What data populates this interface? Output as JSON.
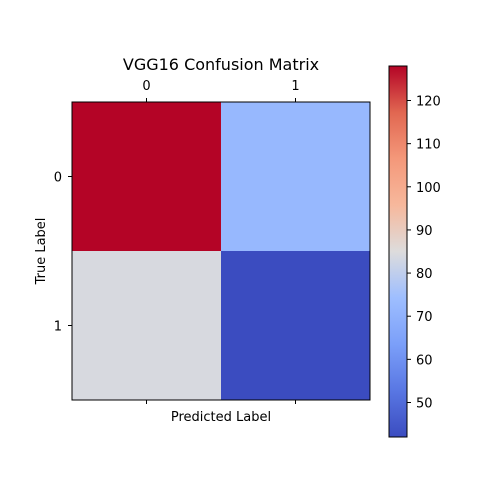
{
  "chart_data": {
    "type": "heatmap",
    "title": "VGG16 Confusion Matrix",
    "xlabel": "Predicted Label",
    "ylabel": "True Label",
    "x_categories": [
      "0",
      "1"
    ],
    "y_categories": [
      "0",
      "1"
    ],
    "values": [
      [
        128,
        72
      ],
      [
        84,
        42
      ]
    ],
    "colormap": "coolwarm",
    "colorbar": {
      "vmin": 42,
      "vmax": 128,
      "ticks": [
        50,
        60,
        70,
        80,
        90,
        100,
        110,
        120
      ],
      "tick_labels": [
        "50",
        "60",
        "70",
        "80",
        "90",
        "100",
        "110",
        "120"
      ]
    },
    "grid": false,
    "x_axis_position": "top"
  }
}
